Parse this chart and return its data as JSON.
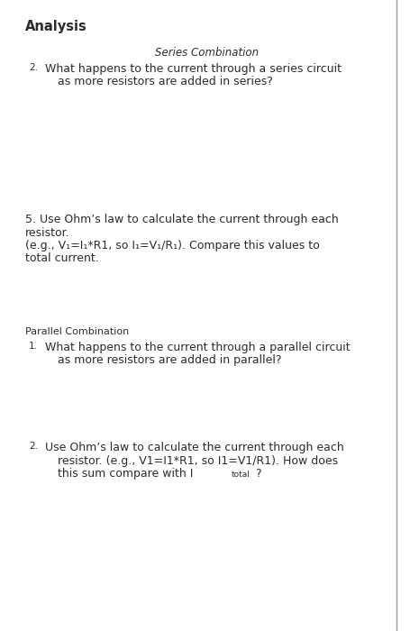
{
  "bg_color": "#ffffff",
  "text_color": "#2b2b2b",
  "border_color": "#999999",
  "title": "Analysis",
  "series_subtitle": "Series Combination",
  "q2_label": "2.",
  "q2_text_line1": "What happens to the current through a series circuit",
  "q2_text_line2": "as more resistors are added in series?",
  "q5_label": "5.",
  "q5_text_line1": "Use Ohm’s law to calculate the current through each",
  "q5_text_line2": "resistor.",
  "q5_text_line3": "(e.g., V₁=I₁*R1, so I₁=V₁/R₁). Compare this values to",
  "q5_text_line4": "total current.",
  "parallel_subtitle": "Parallel Combination",
  "p1_label": "1.",
  "p1_text_line1": "What happens to the current through a parallel circuit",
  "p1_text_line2": "as more resistors are added in parallel?",
  "p2_label": "2.",
  "p2_text_line1": "Use Ohm’s law to calculate the current through each",
  "p2_text_line2": "resistor. (e.g., V1=I1*R1, so I1=V1/R1). How does",
  "p2_text_line3": "this sum compare with I",
  "p2_subscript": "total",
  "p2_text_end": "?",
  "title_fontsize": 10.5,
  "subtitle_fontsize": 8.5,
  "body_fontsize": 9.0,
  "parallel_label_fontsize": 8.0,
  "subscript_fontsize": 6.5
}
